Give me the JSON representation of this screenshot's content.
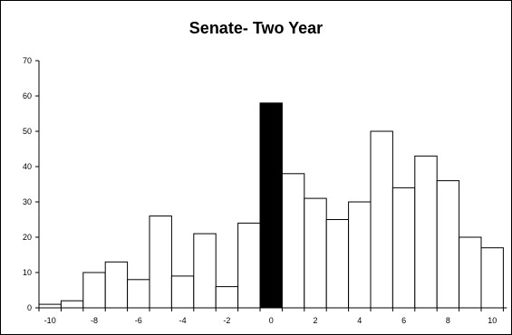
{
  "chart_data": {
    "type": "bar",
    "title": "Senate- Two Year",
    "xlabel": "",
    "ylabel": "",
    "categories": [
      "-10",
      "-9",
      "-8",
      "-7",
      "-6",
      "-5",
      "-4",
      "-3",
      "-2",
      "-1",
      "0",
      "1",
      "2",
      "3",
      "4",
      "5",
      "6",
      "7",
      "8",
      "9",
      "10"
    ],
    "x": [
      -10,
      -9,
      -8,
      -7,
      -6,
      -5,
      -4,
      -3,
      -2,
      -1,
      0,
      1,
      2,
      3,
      4,
      5,
      6,
      7,
      8,
      9,
      10
    ],
    "values": [
      1,
      2,
      10,
      13,
      8,
      26,
      9,
      21,
      6,
      24,
      58,
      38,
      31,
      25,
      30,
      50,
      34,
      43,
      36,
      20,
      17
    ],
    "highlight_x": 0,
    "ylim": [
      0,
      70
    ],
    "yticks": [
      0,
      10,
      20,
      30,
      40,
      50,
      60,
      70
    ],
    "xticks": [
      -10,
      -8,
      -6,
      -4,
      -2,
      0,
      2,
      4,
      6,
      8,
      10
    ],
    "xtick_labels": [
      "-10",
      "-8",
      "-6",
      "-4",
      "-2",
      "0",
      "2",
      "4",
      "6",
      "8",
      "10"
    ],
    "grid": false,
    "legend": "none",
    "colors": {
      "bar_fill": "#ffffff",
      "highlight_fill": "#000000",
      "stroke": "#000000"
    }
  }
}
